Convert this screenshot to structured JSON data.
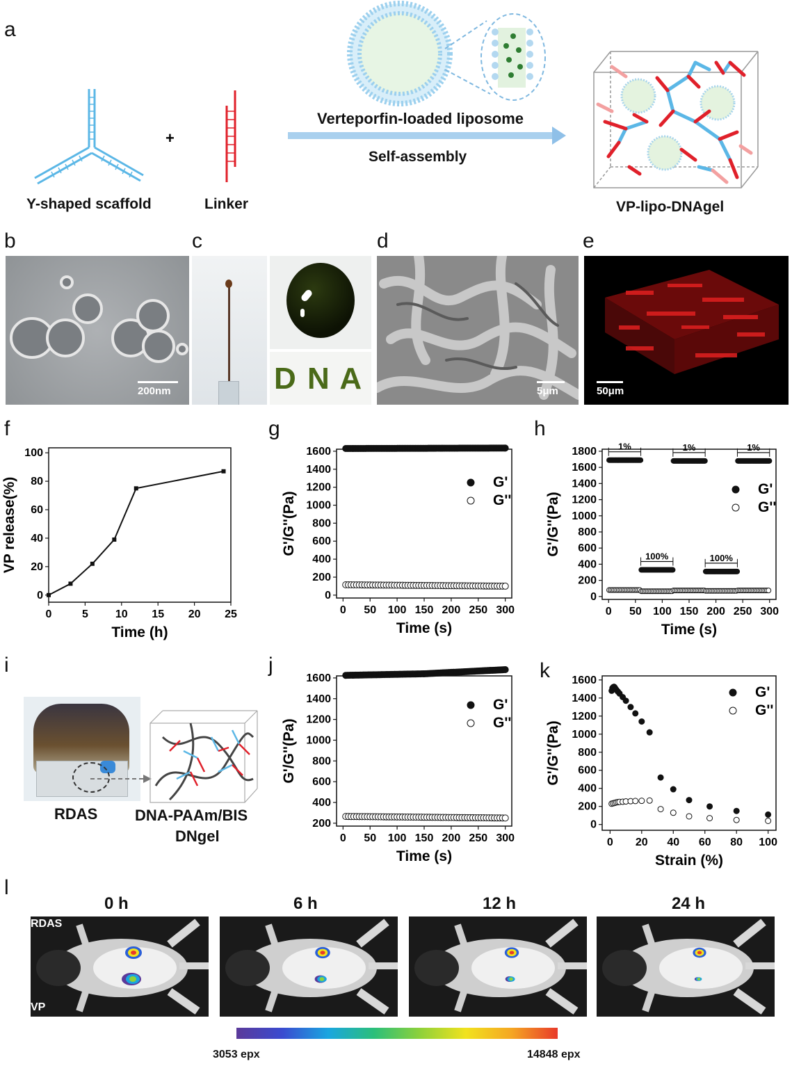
{
  "panels": {
    "a": "a",
    "b": "b",
    "c": "c",
    "d": "d",
    "e": "e",
    "f": "f",
    "g": "g",
    "h": "h",
    "i": "i",
    "j": "j",
    "k": "k",
    "l": "l"
  },
  "scheme_a": {
    "plus": "+",
    "y_scaffold": "Y-shaped scaffold",
    "linker": "Linker",
    "arrow_top": "Verteporfin-loaded liposome",
    "arrow_bottom": "Self-assembly",
    "product": "VP-lipo-DNAgel"
  },
  "micrographs": {
    "b_scale": "200nm",
    "c_word": "D N A",
    "d_scale": "5μm",
    "e_scale": "50μm"
  },
  "panel_i": {
    "left_label": "RDAS",
    "right_label_1": "DNA-PAAm/BIS",
    "right_label_2": "DNgel"
  },
  "panel_l": {
    "timepoints": [
      "0 h",
      "6 h",
      "12 h",
      "24 h"
    ],
    "row_top": "RDAS",
    "row_bottom": "VP",
    "cbar_min": "3053 epx",
    "cbar_max": "14848 epx",
    "cbar_colors": [
      "#5b3a9a",
      "#3a4bd0",
      "#1aa6e0",
      "#2bbf7a",
      "#8ed13a",
      "#f1e21e",
      "#f5a623",
      "#e83a2a"
    ]
  },
  "chart_data": [
    {
      "panel": "f",
      "type": "line",
      "xlabel": "Time (h)",
      "ylabel": "VP release(%)",
      "xlim": [
        0,
        25
      ],
      "ylim": [
        0,
        100
      ],
      "xticks": [
        0,
        5,
        10,
        15,
        20,
        25
      ],
      "yticks": [
        0,
        20,
        40,
        60,
        80,
        100
      ],
      "x": [
        0,
        3,
        6,
        9,
        12,
        24
      ],
      "y": [
        0,
        8,
        22,
        39,
        75,
        87
      ]
    },
    {
      "panel": "g",
      "type": "scatter",
      "xlabel": "Time (s)",
      "ylabel": "G'/G''(Pa)",
      "xlim": [
        0,
        300
      ],
      "ylim": [
        0,
        1600
      ],
      "xticks": [
        0,
        50,
        100,
        150,
        200,
        250,
        300
      ],
      "yticks": [
        0,
        200,
        400,
        600,
        800,
        1000,
        1200,
        1400,
        1600
      ],
      "legend": [
        "G'",
        "G''"
      ],
      "series": [
        {
          "name": "G'",
          "x": [
            5,
            300
          ],
          "y": [
            1630,
            1635
          ]
        },
        {
          "name": "G''",
          "x": [
            5,
            300
          ],
          "y": [
            115,
            100
          ]
        }
      ]
    },
    {
      "panel": "h",
      "type": "scatter",
      "xlabel": "Time (s)",
      "ylabel": "G'/G''(Pa)",
      "xlim": [
        0,
        300
      ],
      "ylim": [
        0,
        1800
      ],
      "xticks": [
        0,
        50,
        100,
        150,
        200,
        250,
        300
      ],
      "yticks": [
        0,
        200,
        400,
        600,
        800,
        1000,
        1200,
        1400,
        1600,
        1800
      ],
      "legend": [
        "G'",
        "G''"
      ],
      "annotations": [
        "1%",
        "100%",
        "1%",
        "100%",
        "1%"
      ],
      "series": [
        {
          "name": "G'",
          "segments": [
            [
              0,
              60,
              1690
            ],
            [
              60,
              120,
              330
            ],
            [
              120,
              180,
              1680
            ],
            [
              180,
              240,
              310
            ],
            [
              240,
              300,
              1680
            ]
          ]
        },
        {
          "name": "G''",
          "segments": [
            [
              0,
              60,
              80
            ],
            [
              60,
              120,
              65
            ],
            [
              120,
              180,
              75
            ],
            [
              180,
              240,
              70
            ],
            [
              240,
              300,
              75
            ]
          ]
        }
      ]
    },
    {
      "panel": "j",
      "type": "scatter",
      "xlabel": "Time (s)",
      "ylabel": "G'/G''(Pa)",
      "xlim": [
        0,
        300
      ],
      "ylim": [
        200,
        1600
      ],
      "xticks": [
        0,
        50,
        100,
        150,
        200,
        250,
        300
      ],
      "yticks": [
        200,
        400,
        600,
        800,
        1000,
        1200,
        1400,
        1600
      ],
      "legend": [
        "G'",
        "G''"
      ],
      "series": [
        {
          "name": "G'",
          "x": [
            5,
            150,
            300
          ],
          "y": [
            1625,
            1640,
            1680
          ]
        },
        {
          "name": "G''",
          "x": [
            5,
            300
          ],
          "y": [
            265,
            250
          ]
        }
      ]
    },
    {
      "panel": "k",
      "type": "scatter",
      "xlabel": "Strain (%)",
      "ylabel": "G'/G''(Pa)",
      "xlim": [
        0,
        100
      ],
      "ylim": [
        0,
        1600
      ],
      "xticks": [
        0,
        20,
        40,
        60,
        80,
        100
      ],
      "yticks": [
        0,
        200,
        400,
        600,
        800,
        1000,
        1200,
        1400,
        1600
      ],
      "legend": [
        "G'",
        "G''"
      ],
      "series": [
        {
          "name": "G'",
          "x": [
            1,
            1.5,
            2,
            2.5,
            3,
            3.5,
            4,
            5,
            6,
            8,
            10,
            13,
            16,
            20,
            25,
            32,
            40,
            50,
            63,
            80,
            100
          ],
          "y": [
            1480,
            1510,
            1520,
            1525,
            1515,
            1500,
            1490,
            1470,
            1450,
            1410,
            1370,
            1300,
            1230,
            1140,
            1020,
            520,
            390,
            270,
            200,
            150,
            110
          ]
        },
        {
          "name": "G''",
          "x": [
            1,
            2,
            3,
            4,
            5,
            6,
            8,
            10,
            13,
            16,
            20,
            25,
            32,
            40,
            50,
            63,
            80,
            100
          ],
          "y": [
            230,
            235,
            240,
            245,
            248,
            250,
            252,
            255,
            258,
            260,
            262,
            265,
            170,
            130,
            90,
            70,
            50,
            40
          ]
        }
      ]
    }
  ]
}
